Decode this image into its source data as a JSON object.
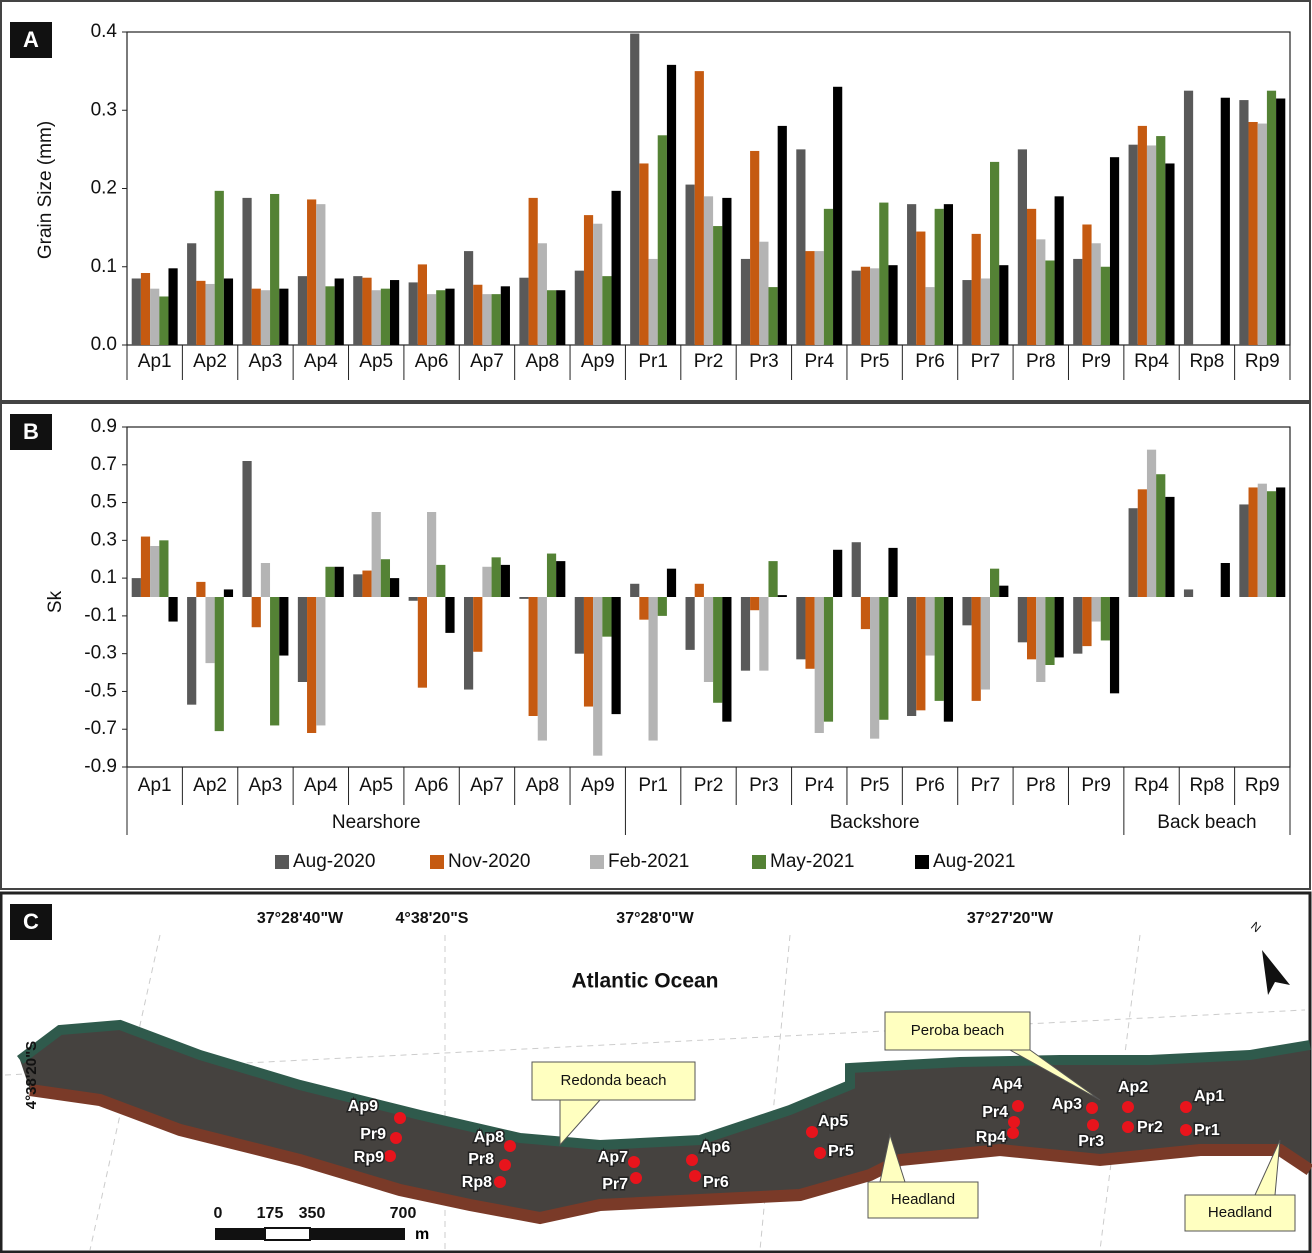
{
  "chart_data": [
    {
      "type": "bar",
      "panel": "A",
      "ylabel": "Grain Size (mm)",
      "categories": [
        "Ap1",
        "Ap2",
        "Ap3",
        "Ap4",
        "Ap5",
        "Ap6",
        "Ap7",
        "Ap8",
        "Ap9",
        "Pr1",
        "Pr2",
        "Pr3",
        "Pr4",
        "Pr5",
        "Pr6",
        "Pr7",
        "Pr8",
        "Pr9",
        "Rp4",
        "Rp8",
        "Rp9"
      ],
      "ylim": [
        0,
        0.4
      ],
      "yticks": [
        {
          "value": 0,
          "label": "0.0"
        },
        0.1,
        0.2,
        0.3,
        0.4
      ],
      "series": [
        {
          "color": "#595959",
          "values": [
            0.085,
            0.13,
            0.188,
            0.088,
            0.088,
            0.08,
            0.12,
            0.086,
            0.095,
            0.398,
            0.205,
            0.11,
            0.25,
            0.095,
            0.18,
            0.083,
            0.25,
            0.11,
            0.256,
            0.325,
            0.313
          ]
        },
        {
          "color": "#c55a11",
          "values": [
            0.092,
            0.082,
            0.072,
            0.186,
            0.086,
            0.103,
            0.077,
            0.188,
            0.166,
            0.232,
            0.35,
            0.248,
            0.12,
            0.1,
            0.145,
            0.142,
            0.174,
            0.154,
            0.28,
            null,
            0.285
          ]
        },
        {
          "color": "#b4b4b4",
          "values": [
            0.072,
            0.078,
            0.07,
            0.18,
            0.07,
            0.065,
            0.065,
            0.13,
            0.155,
            0.11,
            0.19,
            0.132,
            0.12,
            0.098,
            0.074,
            0.085,
            0.135,
            0.13,
            0.255,
            null,
            0.283
          ]
        },
        {
          "color": "#548235",
          "values": [
            0.062,
            0.197,
            0.193,
            0.075,
            0.072,
            0.07,
            0.065,
            0.07,
            0.088,
            0.268,
            0.152,
            0.074,
            0.174,
            0.182,
            0.174,
            0.234,
            0.108,
            0.1,
            0.267,
            null,
            0.325
          ]
        },
        {
          "color": "#000000",
          "values": [
            0.098,
            0.085,
            0.072,
            0.085,
            0.083,
            0.072,
            0.075,
            0.07,
            0.197,
            0.358,
            0.188,
            0.28,
            0.33,
            0.102,
            0.18,
            0.102,
            0.19,
            0.24,
            0.232,
            0.316,
            0.315
          ]
        }
      ]
    },
    {
      "type": "bar",
      "panel": "B",
      "ylabel": "Sk",
      "categories": [
        "Ap1",
        "Ap2",
        "Ap3",
        "Ap4",
        "Ap5",
        "Ap6",
        "Ap7",
        "Ap8",
        "Ap9",
        "Pr1",
        "Pr2",
        "Pr3",
        "Pr4",
        "Pr5",
        "Pr6",
        "Pr7",
        "Pr8",
        "Pr9",
        "Rp4",
        "Rp8",
        "Rp9"
      ],
      "groups": [
        {
          "label": "Nearshore",
          "size": 9
        },
        {
          "label": "Backshore",
          "size": 9
        },
        {
          "label": "Back beach",
          "size": 3
        }
      ],
      "ylim": [
        -0.9,
        0.9
      ],
      "yticks": [
        -0.9,
        -0.7,
        -0.5,
        -0.3,
        -0.1,
        0.1,
        0.3,
        0.5,
        0.7,
        0.9
      ],
      "legend": "bottom",
      "series": [
        {
          "name": "Aug-2020",
          "color": "#595959",
          "values": [
            0.1,
            -0.57,
            0.72,
            -0.45,
            0.12,
            -0.02,
            -0.49,
            -0.01,
            -0.3,
            0.07,
            -0.28,
            -0.39,
            -0.33,
            0.29,
            -0.63,
            -0.15,
            -0.24,
            -0.3,
            0.47,
            0.04,
            0.49
          ]
        },
        {
          "name": "Nov-2020",
          "color": "#c55a11",
          "values": [
            0.32,
            0.08,
            -0.16,
            -0.72,
            0.14,
            -0.48,
            -0.29,
            -0.63,
            -0.58,
            -0.12,
            0.07,
            -0.07,
            -0.38,
            -0.17,
            -0.6,
            -0.55,
            -0.33,
            -0.26,
            0.57,
            null,
            0.58
          ]
        },
        {
          "name": "Feb-2021",
          "color": "#b4b4b4",
          "values": [
            0.27,
            -0.35,
            0.18,
            -0.68,
            0.45,
            0.45,
            0.16,
            -0.76,
            -0.84,
            -0.76,
            -0.45,
            -0.39,
            -0.72,
            -0.75,
            -0.31,
            -0.49,
            -0.45,
            -0.13,
            0.78,
            null,
            0.6
          ]
        },
        {
          "name": "May-2021",
          "color": "#548235",
          "values": [
            0.3,
            -0.71,
            -0.68,
            0.16,
            0.2,
            0.17,
            0.21,
            0.23,
            -0.21,
            -0.1,
            -0.56,
            0.19,
            -0.66,
            -0.65,
            -0.55,
            0.15,
            -0.36,
            -0.23,
            0.65,
            null,
            0.56
          ]
        },
        {
          "name": "Aug-2021",
          "color": "#000000",
          "values": [
            -0.13,
            0.04,
            -0.31,
            0.16,
            0.1,
            -0.19,
            0.17,
            0.19,
            -0.62,
            0.15,
            -0.66,
            0.01,
            0.25,
            0.26,
            -0.66,
            0.06,
            -0.32,
            -0.51,
            0.53,
            0.18,
            0.58
          ]
        }
      ]
    }
  ],
  "map": {
    "panel": "C",
    "title": "Atlantic Ocean",
    "coords_top": [
      "37°28'40\"W",
      "4°38'20\"S",
      "37°28'0\"W",
      "37°27'20\"W"
    ],
    "coord_left": "4°38'20\"S",
    "callouts": [
      "Redonda beach",
      "Peroba beach",
      "Headland",
      "Headland"
    ],
    "points": [
      "Ap9",
      "Pr9",
      "Rp9",
      "Ap8",
      "Pr8",
      "Rp8",
      "Ap7",
      "Pr7",
      "Ap6",
      "Pr6",
      "Ap5",
      "Pr5",
      "Ap4",
      "Pr4",
      "Rp4",
      "Ap3",
      "Pr3",
      "Ap2",
      "Pr2",
      "Ap1",
      "Pr1"
    ],
    "scale": {
      "ticks": [
        0,
        175,
        350,
        700
      ],
      "unit": "m"
    },
    "north": "N"
  }
}
